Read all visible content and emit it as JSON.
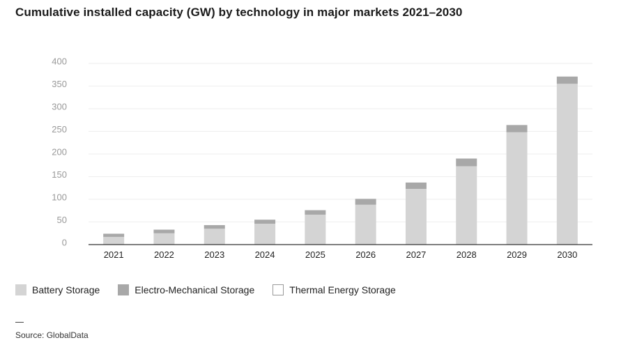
{
  "title": "Cumulative installed capacity (GW) by technology in major markets 2021–2030",
  "source": "Source: GlobalData",
  "colors": {
    "battery": "#d4d4d4",
    "electro": "#a8a8a8",
    "thermal": "#ffffff",
    "thermal_border": "#999999",
    "grid": "#eeeeee",
    "axis": "#333333"
  },
  "legend": [
    {
      "label": "Battery Storage",
      "key": "battery"
    },
    {
      "label": "Electro-Mechanical Storage",
      "key": "electro"
    },
    {
      "label": "Thermal Energy Storage",
      "key": "thermal"
    }
  ],
  "chart_data": {
    "type": "bar",
    "stacked": true,
    "title": "Cumulative installed capacity (GW) by technology in major markets 2021–2030",
    "xlabel": "",
    "ylabel": "",
    "ylim": [
      0,
      400
    ],
    "yticks": [
      0,
      50,
      100,
      150,
      200,
      250,
      300,
      350,
      400
    ],
    "categories": [
      "2021",
      "2022",
      "2023",
      "2024",
      "2025",
      "2026",
      "2027",
      "2028",
      "2029",
      "2030"
    ],
    "series": [
      {
        "name": "Battery Storage",
        "key": "battery",
        "values": [
          17,
          25,
          35,
          46,
          66,
          88,
          123,
          173,
          248,
          355
        ]
      },
      {
        "name": "Electro-Mechanical Storage",
        "key": "electro",
        "values": [
          7,
          8,
          8,
          9,
          10,
          13,
          14,
          17,
          16,
          16
        ]
      },
      {
        "name": "Thermal Energy Storage",
        "key": "thermal",
        "values": [
          0,
          0,
          0,
          0,
          0,
          0,
          0,
          0,
          0,
          0
        ]
      }
    ],
    "grid": true,
    "legend_position": "bottom-left"
  }
}
